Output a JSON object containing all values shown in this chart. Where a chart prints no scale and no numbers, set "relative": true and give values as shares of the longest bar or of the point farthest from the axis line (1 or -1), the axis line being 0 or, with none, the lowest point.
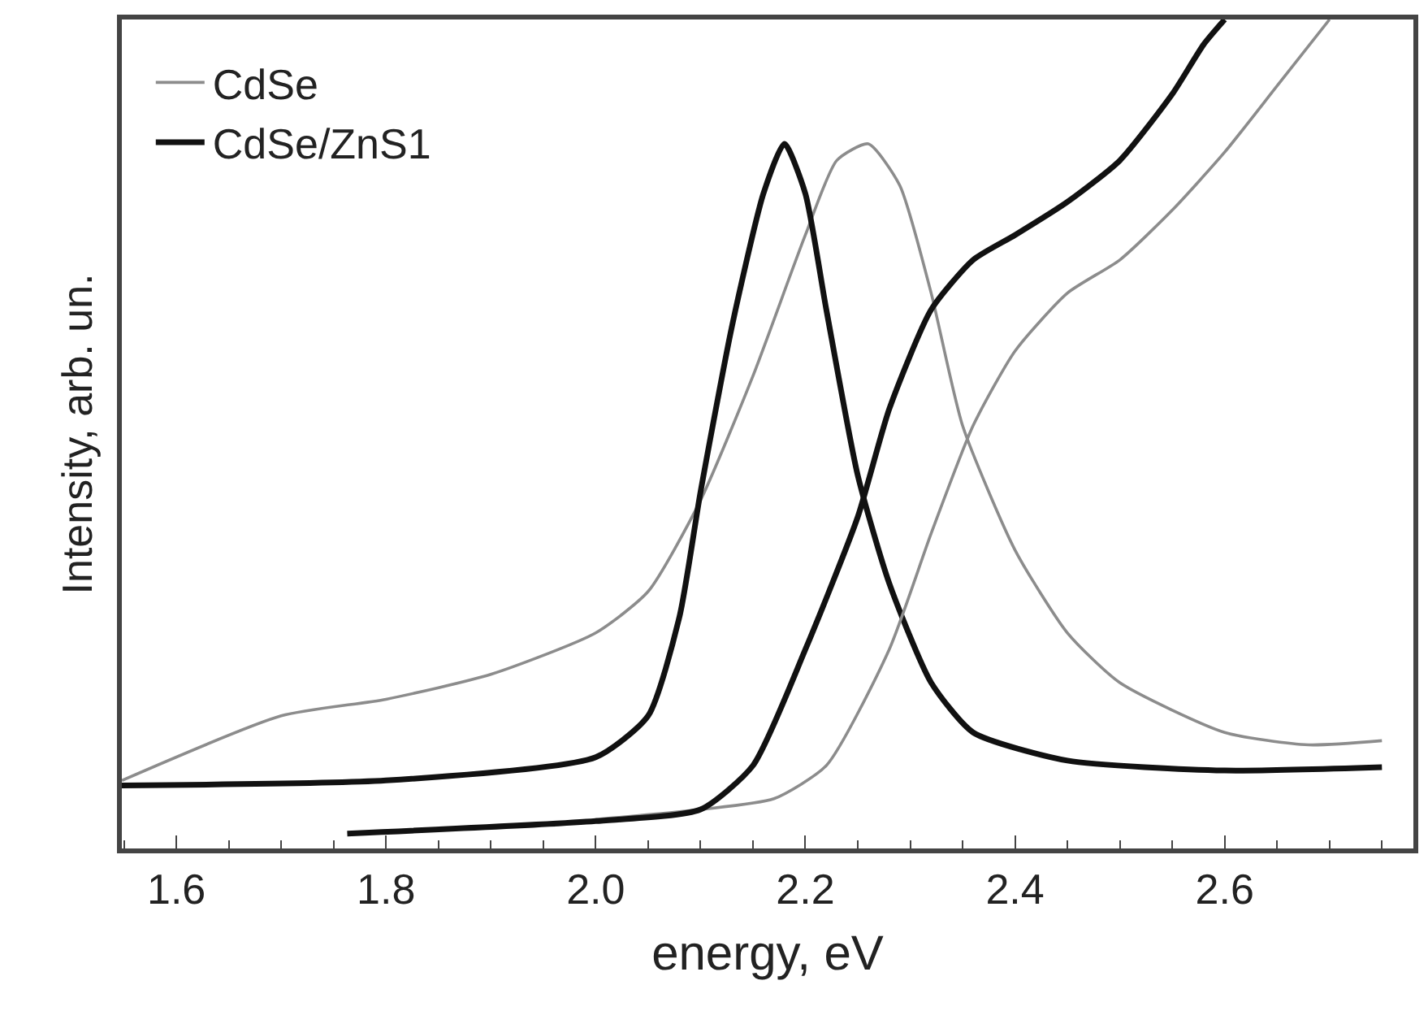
{
  "chart_data": {
    "type": "line",
    "relative": true,
    "xlabel": "energy, eV",
    "ylabel": "Intensity, arb. un.",
    "xlim": [
      1.548,
      2.78
    ],
    "xticks": [
      {
        "value": 1.6,
        "label": "1.6"
      },
      {
        "value": 1.8,
        "label": "1.8"
      },
      {
        "value": 2.0,
        "label": "2.0"
      },
      {
        "value": 2.2,
        "label": "2.2"
      },
      {
        "value": 2.4,
        "label": "2.4"
      },
      {
        "value": 2.6,
        "label": "2.6"
      }
    ],
    "legend": "top left",
    "marker": "none",
    "line_style": "solid",
    "series": [
      {
        "name": "CdSe",
        "color": "#8c8c8c",
        "x": [
          1.548,
          1.7,
          1.8,
          1.9,
          2.0,
          2.05,
          2.1,
          2.15,
          2.2,
          2.23,
          2.26,
          2.29,
          2.32,
          2.35,
          2.4,
          2.45,
          2.5,
          2.6,
          2.68,
          2.75
        ],
        "values": [
          0.082,
          0.16,
          0.18,
          0.21,
          0.26,
          0.31,
          0.42,
          0.57,
          0.74,
          0.83,
          0.85,
          0.8,
          0.67,
          0.51,
          0.36,
          0.26,
          0.2,
          0.14,
          0.125,
          0.13
        ]
      },
      {
        "name": "CdSe/ZnS1",
        "color": "#111111",
        "x": [
          1.548,
          1.8,
          2.0,
          2.05,
          2.08,
          2.1,
          2.13,
          2.16,
          2.18,
          2.2,
          2.22,
          2.25,
          2.28,
          2.32,
          2.36,
          2.45,
          2.6,
          2.75
        ],
        "values": [
          0.076,
          0.082,
          0.11,
          0.16,
          0.28,
          0.43,
          0.63,
          0.79,
          0.85,
          0.79,
          0.65,
          0.45,
          0.32,
          0.2,
          0.14,
          0.106,
          0.094,
          0.098
        ]
      },
      {
        "color": "#8c8c8c",
        "x": [
          2.0,
          2.1,
          2.17,
          2.22,
          2.28,
          2.32,
          2.36,
          2.4,
          2.45,
          2.5,
          2.55,
          2.6,
          2.65,
          2.7
        ],
        "values": [
          0.035,
          0.047,
          0.06,
          0.1,
          0.24,
          0.38,
          0.51,
          0.6,
          0.67,
          0.71,
          0.77,
          0.84,
          0.92,
          1.0
        ]
      },
      {
        "color": "#111111",
        "x": [
          1.763,
          2.0,
          2.1,
          2.15,
          2.2,
          2.25,
          2.28,
          2.32,
          2.36,
          2.4,
          2.45,
          2.5,
          2.55,
          2.58,
          2.6
        ],
        "values": [
          0.018,
          0.033,
          0.047,
          0.1,
          0.24,
          0.4,
          0.53,
          0.65,
          0.71,
          0.74,
          0.78,
          0.83,
          0.91,
          0.97,
          1.0
        ]
      }
    ]
  }
}
